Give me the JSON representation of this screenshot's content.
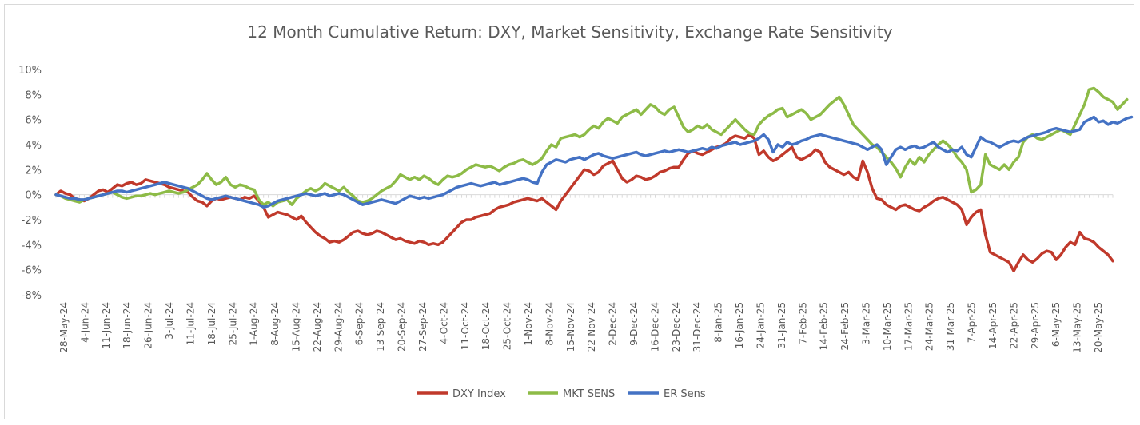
{
  "chart_data": {
    "type": "line",
    "title": "12 Month Cumulative Return: DXY, Market Sensitivity, Exchange Rate Sensitivity",
    "xlabel": "",
    "ylabel": "",
    "ylim": [
      -8,
      10
    ],
    "y_ticks": [
      10,
      8,
      6,
      4,
      2,
      0,
      -2,
      -4,
      -6,
      -8
    ],
    "y_tick_labels": [
      "10%",
      "8%",
      "6%",
      "4%",
      "2%",
      "0%",
      "-2%",
      "-4%",
      "-6%",
      "-8%"
    ],
    "x_tick_labels": [
      "28-May-24",
      "4-Jun-24",
      "11-Jun-24",
      "18-Jun-24",
      "26-Jun-24",
      "3-Jul-24",
      "11-Jul-24",
      "18-Jul-24",
      "25-Jul-24",
      "1-Aug-24",
      "8-Aug-24",
      "15-Aug-24",
      "22-Aug-24",
      "29-Aug-24",
      "6-Sep-24",
      "13-Sep-24",
      "20-Sep-24",
      "27-Sep-24",
      "4-Oct-24",
      "11-Oct-24",
      "18-Oct-24",
      "25-Oct-24",
      "1-Nov-24",
      "8-Nov-24",
      "15-Nov-24",
      "22-Nov-24",
      "2-Dec-24",
      "9-Dec-24",
      "16-Dec-24",
      "23-Dec-24",
      "31-Dec-24",
      "8-Jan-25",
      "16-Jan-25",
      "24-Jan-25",
      "31-Jan-25",
      "7-Feb-25",
      "14-Feb-25",
      "24-Feb-25",
      "3-Mar-25",
      "10-Mar-25",
      "17-Mar-25",
      "24-Mar-25",
      "31-Mar-25",
      "7-Apr-25",
      "14-Apr-25",
      "22-Apr-25",
      "29-Apr-25",
      "6-May-25",
      "13-May-25",
      "20-May-25"
    ],
    "legend_position": "bottom",
    "grid": false,
    "series": [
      {
        "name": "DXY Index",
        "color": "#c0392b",
        "values": [
          0,
          0.3,
          0.1,
          0,
          -0.3,
          -0.4,
          -0.5,
          -0.3,
          0,
          0.3,
          0.4,
          0.2,
          0.5,
          0.8,
          0.7,
          0.9,
          1.0,
          0.8,
          0.9,
          1.2,
          1.1,
          1.0,
          0.9,
          0.8,
          0.6,
          0.5,
          0.4,
          0.3,
          0.2,
          -0.2,
          -0.5,
          -0.6,
          -0.9,
          -0.5,
          -0.3,
          -0.4,
          -0.3,
          -0.2,
          -0.3,
          -0.4,
          -0.2,
          -0.3,
          -0.1,
          -0.5,
          -1.0,
          -1.8,
          -1.6,
          -1.4,
          -1.5,
          -1.6,
          -1.8,
          -2.0,
          -1.7,
          -2.2,
          -2.6,
          -3.0,
          -3.3,
          -3.5,
          -3.8,
          -3.7,
          -3.8,
          -3.6,
          -3.3,
          -3.0,
          -2.9,
          -3.1,
          -3.2,
          -3.1,
          -2.9,
          -3.0,
          -3.2,
          -3.4,
          -3.6,
          -3.5,
          -3.7,
          -3.8,
          -3.9,
          -3.7,
          -3.8,
          -4.0,
          -3.9,
          -4.0,
          -3.8,
          -3.4,
          -3.0,
          -2.6,
          -2.2,
          -2.0,
          -2.0,
          -1.8,
          -1.7,
          -1.6,
          -1.5,
          -1.2,
          -1.0,
          -0.9,
          -0.8,
          -0.6,
          -0.5,
          -0.4,
          -0.3,
          -0.4,
          -0.5,
          -0.3,
          -0.6,
          -0.9,
          -1.2,
          -0.5,
          0,
          0.5,
          1.0,
          1.5,
          2.0,
          1.9,
          1.6,
          1.8,
          2.3,
          2.5,
          2.7,
          2.0,
          1.3,
          1.0,
          1.2,
          1.5,
          1.4,
          1.2,
          1.3,
          1.5,
          1.8,
          1.9,
          2.1,
          2.2,
          2.2,
          2.8,
          3.3,
          3.5,
          3.3,
          3.2,
          3.4,
          3.6,
          3.8,
          3.9,
          4.1,
          4.5,
          4.7,
          4.6,
          4.5,
          4.8,
          4.5,
          3.2,
          3.5,
          3.0,
          2.7,
          2.9,
          3.2,
          3.5,
          3.8,
          3.0,
          2.8,
          3.0,
          3.2,
          3.6,
          3.4,
          2.6,
          2.2,
          2.0,
          1.8,
          1.6,
          1.8,
          1.4,
          1.2,
          2.7,
          1.8,
          0.5,
          -0.3,
          -0.4,
          -0.8,
          -1.0,
          -1.2,
          -0.9,
          -0.8,
          -1.0,
          -1.2,
          -1.3,
          -1.0,
          -0.8,
          -0.5,
          -0.3,
          -0.2,
          -0.4,
          -0.6,
          -0.8,
          -1.2,
          -2.4,
          -1.8,
          -1.4,
          -1.2,
          -3.2,
          -4.6,
          -4.8,
          -5.0,
          -5.2,
          -5.4,
          -6.1,
          -5.4,
          -4.8,
          -5.2,
          -5.4,
          -5.1,
          -4.7,
          -4.5,
          -4.6,
          -5.2,
          -4.8,
          -4.2,
          -3.8,
          -4.0,
          -3.0,
          -3.5,
          -3.6,
          -3.8,
          -4.2,
          -4.5,
          -4.8,
          -5.3
        ]
      },
      {
        "name": "MKT SENS",
        "color": "#8dbb47",
        "values": [
          0,
          -0.1,
          -0.3,
          -0.4,
          -0.5,
          -0.6,
          -0.4,
          -0.3,
          -0.2,
          -0.1,
          0,
          0.1,
          0.2,
          0,
          -0.2,
          -0.3,
          -0.2,
          -0.1,
          -0.1,
          0,
          0.1,
          0,
          0.1,
          0.2,
          0.3,
          0.2,
          0.1,
          0.2,
          0.4,
          0.6,
          0.8,
          1.2,
          1.7,
          1.2,
          0.8,
          1.0,
          1.4,
          0.8,
          0.6,
          0.8,
          0.7,
          0.5,
          0.4,
          -0.4,
          -0.8,
          -0.6,
          -0.9,
          -0.6,
          -0.5,
          -0.4,
          -0.8,
          -0.3,
          0,
          0.3,
          0.5,
          0.3,
          0.5,
          0.9,
          0.7,
          0.5,
          0.3,
          0.6,
          0.2,
          -0.1,
          -0.5,
          -0.6,
          -0.5,
          -0.3,
          0,
          0.3,
          0.5,
          0.7,
          1.1,
          1.6,
          1.4,
          1.2,
          1.4,
          1.2,
          1.5,
          1.3,
          1.0,
          0.8,
          1.2,
          1.5,
          1.4,
          1.5,
          1.7,
          2.0,
          2.2,
          2.4,
          2.3,
          2.2,
          2.3,
          2.1,
          1.9,
          2.2,
          2.4,
          2.5,
          2.7,
          2.8,
          2.6,
          2.4,
          2.6,
          2.9,
          3.5,
          4.0,
          3.8,
          4.5,
          4.6,
          4.7,
          4.8,
          4.6,
          4.8,
          5.2,
          5.5,
          5.3,
          5.8,
          6.1,
          5.9,
          5.7,
          6.2,
          6.4,
          6.6,
          6.8,
          6.4,
          6.8,
          7.2,
          7.0,
          6.6,
          6.4,
          6.8,
          7.0,
          6.2,
          5.4,
          5.0,
          5.2,
          5.5,
          5.3,
          5.6,
          5.2,
          5.0,
          4.8,
          5.2,
          5.6,
          6.0,
          5.6,
          5.2,
          4.9,
          4.8,
          5.6,
          6.0,
          6.3,
          6.5,
          6.8,
          6.9,
          6.2,
          6.4,
          6.6,
          6.8,
          6.5,
          6.0,
          6.2,
          6.4,
          6.8,
          7.2,
          7.5,
          7.8,
          7.2,
          6.4,
          5.6,
          5.2,
          4.8,
          4.4,
          4.0,
          3.8,
          3.4,
          3.0,
          2.6,
          2.1,
          1.4,
          2.2,
          2.8,
          2.4,
          3.0,
          2.6,
          3.2,
          3.6,
          4.0,
          4.3,
          4.0,
          3.6,
          3.0,
          2.6,
          2.0,
          0.2,
          0.4,
          0.8,
          3.2,
          2.4,
          2.2,
          2.0,
          2.4,
          2.0,
          2.6,
          3.0,
          4.2,
          4.6,
          4.8,
          4.5,
          4.4,
          4.6,
          4.8,
          5.0,
          5.2,
          5.0,
          4.8,
          5.6,
          6.4,
          7.2,
          8.4,
          8.5,
          8.2,
          7.8,
          7.6,
          7.4,
          6.8,
          7.2,
          7.6
        ]
      },
      {
        "name": "ER Sens",
        "color": "#4472c4",
        "values": [
          0,
          -0.1,
          -0.2,
          -0.3,
          -0.3,
          -0.4,
          -0.4,
          -0.3,
          -0.2,
          -0.1,
          0,
          0.1,
          0.2,
          0.3,
          0.3,
          0.2,
          0.3,
          0.4,
          0.5,
          0.6,
          0.7,
          0.8,
          0.9,
          1.0,
          0.9,
          0.8,
          0.7,
          0.6,
          0.5,
          0.3,
          0.1,
          -0.1,
          -0.3,
          -0.4,
          -0.3,
          -0.2,
          -0.1,
          -0.2,
          -0.3,
          -0.4,
          -0.5,
          -0.6,
          -0.7,
          -0.8,
          -1.0,
          -0.9,
          -0.7,
          -0.5,
          -0.4,
          -0.3,
          -0.2,
          -0.1,
          0,
          0.1,
          0,
          -0.1,
          0,
          0.1,
          -0.1,
          0,
          0.1,
          0,
          -0.2,
          -0.4,
          -0.6,
          -0.8,
          -0.7,
          -0.6,
          -0.5,
          -0.4,
          -0.5,
          -0.6,
          -0.7,
          -0.5,
          -0.3,
          -0.1,
          -0.2,
          -0.3,
          -0.2,
          -0.3,
          -0.2,
          -0.1,
          0,
          0.2,
          0.4,
          0.6,
          0.7,
          0.8,
          0.9,
          0.8,
          0.7,
          0.8,
          0.9,
          1.0,
          0.8,
          0.9,
          1.0,
          1.1,
          1.2,
          1.3,
          1.2,
          1.0,
          0.9,
          1.8,
          2.4,
          2.6,
          2.8,
          2.7,
          2.6,
          2.8,
          2.9,
          3.0,
          2.8,
          3.0,
          3.2,
          3.3,
          3.1,
          3.0,
          2.9,
          3.0,
          3.1,
          3.2,
          3.3,
          3.4,
          3.2,
          3.1,
          3.2,
          3.3,
          3.4,
          3.5,
          3.4,
          3.5,
          3.6,
          3.5,
          3.4,
          3.5,
          3.6,
          3.7,
          3.6,
          3.8,
          3.7,
          3.9,
          4.0,
          4.1,
          4.2,
          4.0,
          4.1,
          4.2,
          4.3,
          4.5,
          4.8,
          4.4,
          3.4,
          4.0,
          3.8,
          4.2,
          4.0,
          4.1,
          4.3,
          4.4,
          4.6,
          4.7,
          4.8,
          4.7,
          4.6,
          4.5,
          4.4,
          4.3,
          4.2,
          4.1,
          4.0,
          3.8,
          3.6,
          3.8,
          4.0,
          3.6,
          2.4,
          3.0,
          3.6,
          3.8,
          3.6,
          3.8,
          3.9,
          3.7,
          3.8,
          4.0,
          4.2,
          3.8,
          3.6,
          3.4,
          3.6,
          3.5,
          3.8,
          3.2,
          3.0,
          3.8,
          4.6,
          4.3,
          4.2,
          4.0,
          3.8,
          4.0,
          4.2,
          4.3,
          4.2,
          4.4,
          4.6,
          4.7,
          4.8,
          4.9,
          5.0,
          5.2,
          5.3,
          5.2,
          5.1,
          5.0,
          5.1,
          5.2,
          5.8,
          6.0,
          6.2,
          5.8,
          5.9,
          5.6,
          5.8,
          5.7,
          5.9,
          6.1,
          6.2
        ]
      }
    ]
  }
}
